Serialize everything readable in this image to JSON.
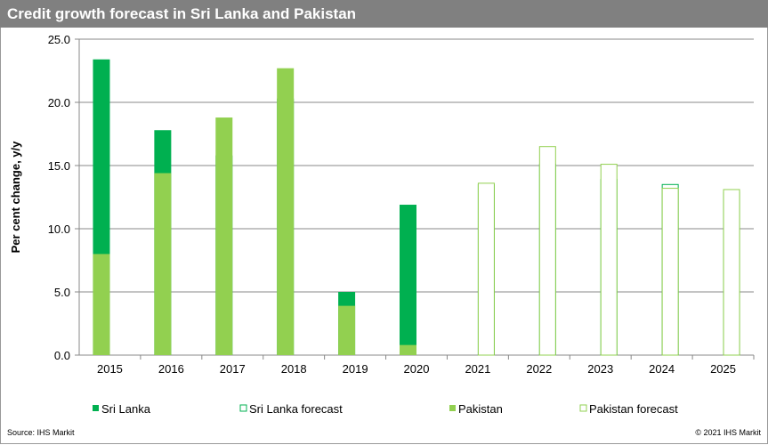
{
  "title": "Credit growth forecast in Sri Lanka and Pakistan",
  "source": "Source: IHS Markit",
  "copyright": "© 2021 IHS Markit",
  "colors": {
    "sri_lanka": "#00B050",
    "pakistan": "#92D050",
    "header": "#808080"
  },
  "chart_data": {
    "type": "bar",
    "title": "Credit growth forecast in Sri Lanka and Pakistan",
    "ylabel": "Per cent change, y/y",
    "xlabel": "",
    "ylim": [
      0,
      25
    ],
    "yticks": [
      "0.0",
      "5.0",
      "10.0",
      "15.0",
      "20.0",
      "25.0"
    ],
    "grid": true,
    "legend_placement": "bottom",
    "categories": [
      "2015",
      "2016",
      "2017",
      "2018",
      "2019",
      "2020",
      "2021",
      "2022",
      "2023",
      "2024",
      "2025"
    ],
    "series": [
      {
        "name": "Sri Lanka",
        "color": "#00B050",
        "style": "filled",
        "values": [
          23.4,
          17.8,
          15.8,
          20.3,
          5.0,
          11.9,
          null,
          null,
          null,
          null,
          null
        ]
      },
      {
        "name": "Sri Lanka forecast",
        "color": "#00B050",
        "style": "outline",
        "values": [
          null,
          null,
          null,
          null,
          null,
          null,
          13.5,
          15.1,
          13.9,
          13.5,
          12.9
        ]
      },
      {
        "name": "Pakistan",
        "color": "#92D050",
        "style": "filled",
        "values": [
          8.0,
          14.4,
          18.8,
          22.7,
          3.9,
          0.8,
          null,
          null,
          null,
          null,
          null
        ]
      },
      {
        "name": "Pakistan forecast",
        "color": "#92D050",
        "style": "outline",
        "values": [
          null,
          null,
          null,
          null,
          null,
          null,
          13.6,
          16.5,
          15.1,
          13.2,
          13.1
        ]
      }
    ]
  }
}
